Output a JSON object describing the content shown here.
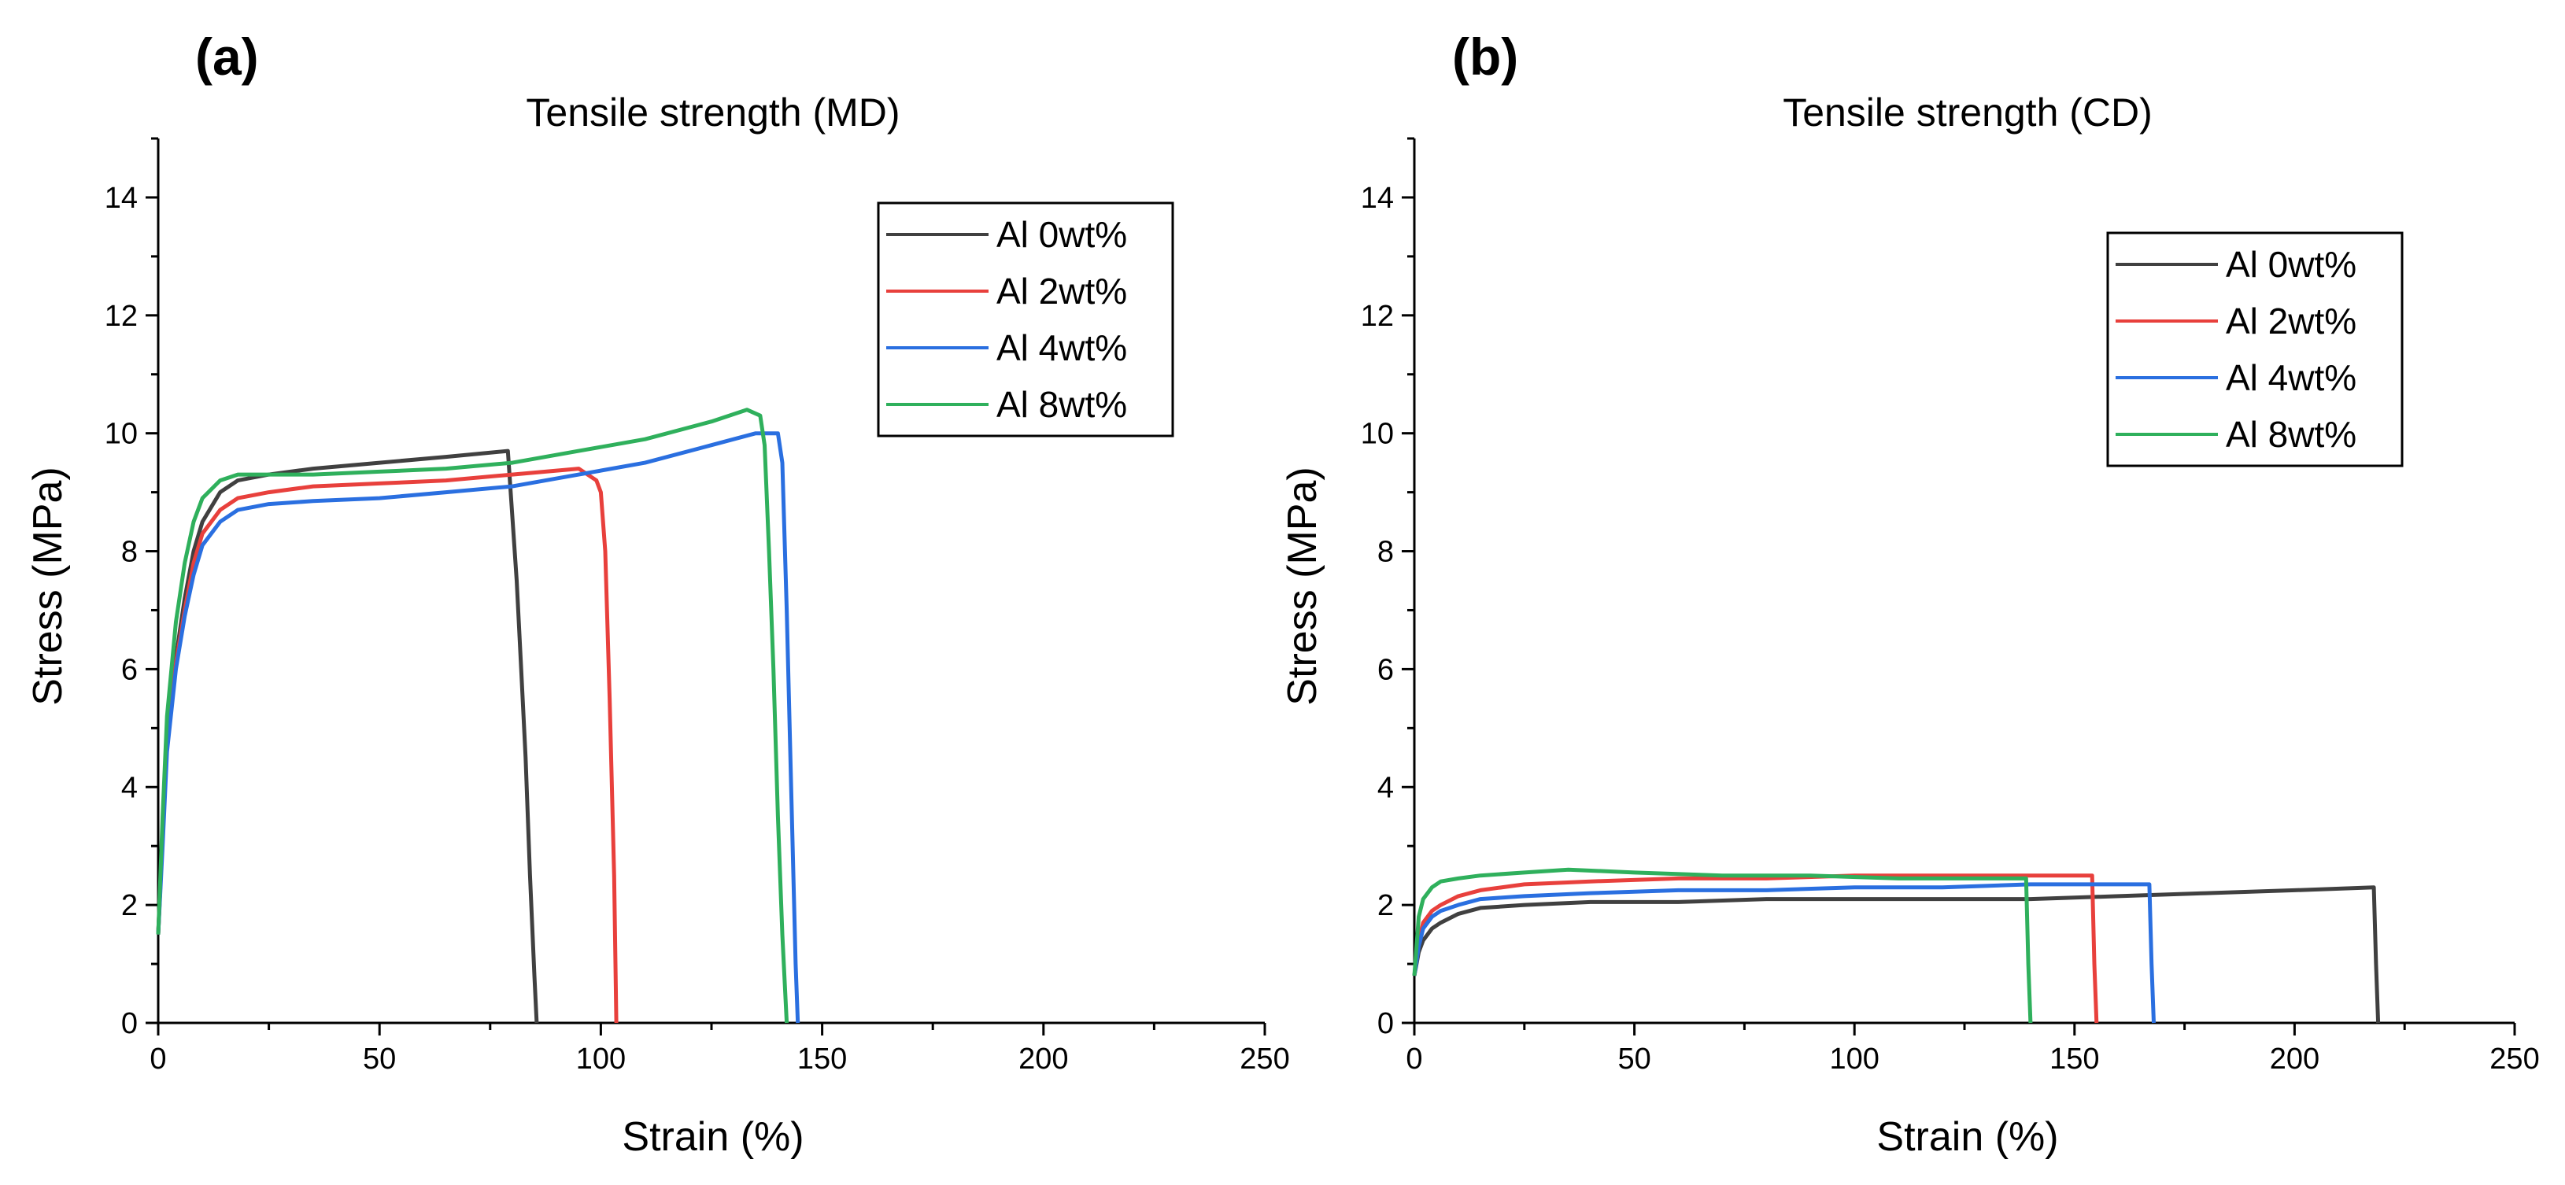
{
  "chart_data": [
    {
      "type": "line",
      "panel_label": "(a)",
      "title": "Tensile strength (MD)",
      "xlabel": "Strain (%)",
      "ylabel": "Stress (MPa)",
      "xlim": [
        0,
        250
      ],
      "ylim": [
        0,
        15
      ],
      "xticks": [
        0,
        50,
        100,
        150,
        200,
        250
      ],
      "yticks": [
        0,
        2,
        4,
        6,
        8,
        10,
        12,
        14
      ],
      "xtick_labels": [
        "0",
        "50",
        "100",
        "150",
        "200",
        "250"
      ],
      "ytick_labels": [
        "0",
        "2",
        "4",
        "6",
        "8",
        "10",
        "12",
        "14"
      ],
      "legend_position": "top-right",
      "series": [
        {
          "name": "Al 0wt%",
          "color": "#404040",
          "x": [
            0,
            1,
            2,
            4,
            6,
            8,
            10,
            14,
            18,
            25,
            35,
            50,
            65,
            79,
            80,
            81,
            82,
            83,
            84,
            85,
            85.5
          ],
          "y": [
            1.5,
            3.2,
            4.8,
            6.2,
            7.2,
            8.0,
            8.5,
            9.0,
            9.2,
            9.3,
            9.4,
            9.5,
            9.6,
            9.7,
            8.6,
            7.5,
            6.0,
            4.5,
            2.5,
            0.8,
            0
          ]
        },
        {
          "name": "Al 2wt%",
          "color": "#e8403c",
          "x": [
            0,
            1,
            2,
            4,
            6,
            8,
            10,
            14,
            18,
            25,
            35,
            50,
            65,
            80,
            95,
            99,
            100,
            101,
            102,
            103,
            103.5
          ],
          "y": [
            1.5,
            3.2,
            4.8,
            6.1,
            7.0,
            7.8,
            8.3,
            8.7,
            8.9,
            9.0,
            9.1,
            9.15,
            9.2,
            9.3,
            9.4,
            9.2,
            9.0,
            8.0,
            5.5,
            2.5,
            0
          ]
        },
        {
          "name": "Al 4wt%",
          "color": "#2a6fe0",
          "x": [
            0,
            1,
            2,
            4,
            6,
            8,
            10,
            14,
            18,
            25,
            35,
            50,
            65,
            80,
            95,
            110,
            125,
            135,
            140,
            141,
            142,
            143,
            144,
            144.5
          ],
          "y": [
            1.5,
            3.0,
            4.6,
            6.0,
            6.9,
            7.6,
            8.1,
            8.5,
            8.7,
            8.8,
            8.85,
            8.9,
            9.0,
            9.1,
            9.3,
            9.5,
            9.8,
            10.0,
            10.0,
            9.5,
            7.0,
            4.0,
            1.0,
            0
          ]
        },
        {
          "name": "Al 8wt%",
          "color": "#2fb05c",
          "x": [
            0,
            1,
            2,
            4,
            6,
            8,
            10,
            14,
            18,
            25,
            35,
            50,
            65,
            80,
            95,
            110,
            125,
            133,
            136,
            137,
            138,
            139,
            140,
            141,
            142
          ],
          "y": [
            1.5,
            3.5,
            5.2,
            6.8,
            7.8,
            8.5,
            8.9,
            9.2,
            9.3,
            9.3,
            9.3,
            9.35,
            9.4,
            9.5,
            9.7,
            9.9,
            10.2,
            10.4,
            10.3,
            9.8,
            8.0,
            6.0,
            3.5,
            1.5,
            0
          ]
        }
      ]
    },
    {
      "type": "line",
      "panel_label": "(b)",
      "title": "Tensile strength (CD)",
      "xlabel": "Strain (%)",
      "ylabel": "Stress (MPa)",
      "xlim": [
        0,
        250
      ],
      "ylim": [
        0,
        15
      ],
      "xticks": [
        0,
        50,
        100,
        150,
        200,
        250
      ],
      "yticks": [
        0,
        2,
        4,
        6,
        8,
        10,
        12,
        14
      ],
      "xtick_labels": [
        "0",
        "50",
        "100",
        "150",
        "200",
        "250"
      ],
      "ytick_labels": [
        "0",
        "2",
        "4",
        "6",
        "8",
        "10",
        "12",
        "14"
      ],
      "legend_position": "top-right",
      "series": [
        {
          "name": "Al 0wt%",
          "color": "#404040",
          "x": [
            0,
            1,
            2,
            4,
            6,
            10,
            15,
            25,
            40,
            60,
            80,
            100,
            120,
            140,
            160,
            180,
            200,
            218,
            218.5,
            219
          ],
          "y": [
            0.8,
            1.2,
            1.4,
            1.6,
            1.7,
            1.85,
            1.95,
            2.0,
            2.05,
            2.05,
            2.1,
            2.1,
            2.1,
            2.1,
            2.15,
            2.2,
            2.25,
            2.3,
            1.0,
            0
          ]
        },
        {
          "name": "Al 2wt%",
          "color": "#e8403c",
          "x": [
            0,
            1,
            2,
            4,
            6,
            10,
            15,
            25,
            40,
            60,
            80,
            100,
            120,
            140,
            150,
            154,
            154.5,
            155
          ],
          "y": [
            0.8,
            1.4,
            1.7,
            1.9,
            2.0,
            2.15,
            2.25,
            2.35,
            2.4,
            2.45,
            2.45,
            2.5,
            2.5,
            2.5,
            2.5,
            2.5,
            1.0,
            0
          ]
        },
        {
          "name": "Al 4wt%",
          "color": "#2a6fe0",
          "x": [
            0,
            1,
            2,
            4,
            6,
            10,
            15,
            25,
            40,
            60,
            80,
            100,
            120,
            140,
            160,
            167,
            167.5,
            168
          ],
          "y": [
            0.8,
            1.3,
            1.6,
            1.8,
            1.9,
            2.0,
            2.1,
            2.15,
            2.2,
            2.25,
            2.25,
            2.3,
            2.3,
            2.35,
            2.35,
            2.35,
            1.0,
            0
          ]
        },
        {
          "name": "Al 8wt%",
          "color": "#2fb05c",
          "x": [
            0,
            1,
            2,
            4,
            6,
            10,
            15,
            25,
            35,
            50,
            70,
            90,
            110,
            130,
            139,
            139.5,
            140
          ],
          "y": [
            0.8,
            1.8,
            2.1,
            2.3,
            2.4,
            2.45,
            2.5,
            2.55,
            2.6,
            2.55,
            2.5,
            2.5,
            2.45,
            2.45,
            2.45,
            1.0,
            0
          ]
        }
      ]
    }
  ]
}
